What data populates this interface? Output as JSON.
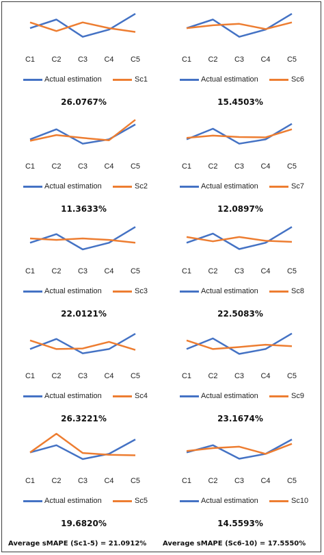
{
  "colors": {
    "actual": "#4472c4",
    "scenario": "#ed7d31",
    "text": "#222222"
  },
  "chart_data": [
    {
      "type": "line",
      "categories": [
        "C1",
        "C2",
        "C3",
        "C4",
        "C5"
      ],
      "series": [
        {
          "name": "Actual estimation",
          "values": [
            0.45,
            0.75,
            0.15,
            0.4,
            0.95
          ]
        },
        {
          "name": "Sc1",
          "values": [
            0.65,
            0.35,
            0.65,
            0.45,
            0.32
          ]
        }
      ],
      "ylim": [
        0,
        1
      ],
      "grid": false,
      "legend": "bottom",
      "score": "26.0767%"
    },
    {
      "type": "line",
      "categories": [
        "C1",
        "C2",
        "C3",
        "C4",
        "C5"
      ],
      "series": [
        {
          "name": "Actual estimation",
          "values": [
            0.45,
            0.75,
            0.15,
            0.4,
            0.95
          ]
        },
        {
          "name": "Sc6",
          "values": [
            0.45,
            0.55,
            0.6,
            0.42,
            0.65
          ]
        }
      ],
      "ylim": [
        0,
        1
      ],
      "grid": false,
      "legend": "bottom",
      "score": "15.4503%"
    },
    {
      "type": "line",
      "categories": [
        "C1",
        "C2",
        "C3",
        "C4",
        "C5"
      ],
      "series": [
        {
          "name": "Actual estimation",
          "values": [
            0.3,
            0.65,
            0.15,
            0.3,
            0.82
          ]
        },
        {
          "name": "Sc2",
          "values": [
            0.25,
            0.45,
            0.35,
            0.27,
            0.98
          ]
        }
      ],
      "ylim": [
        0,
        1
      ],
      "grid": false,
      "legend": "bottom",
      "score": "11.3633%"
    },
    {
      "type": "line",
      "categories": [
        "C1",
        "C2",
        "C3",
        "C4",
        "C5"
      ],
      "series": [
        {
          "name": "Actual estimation",
          "values": [
            0.3,
            0.67,
            0.15,
            0.3,
            0.84
          ]
        },
        {
          "name": "Sc7",
          "values": [
            0.35,
            0.43,
            0.38,
            0.37,
            0.65
          ]
        }
      ],
      "ylim": [
        0,
        1
      ],
      "grid": false,
      "legend": "bottom",
      "score": "12.0897%"
    },
    {
      "type": "line",
      "categories": [
        "C1",
        "C2",
        "C3",
        "C4",
        "C5"
      ],
      "series": [
        {
          "name": "Actual estimation",
          "values": [
            0.35,
            0.65,
            0.12,
            0.35,
            0.9
          ]
        },
        {
          "name": "Sc3",
          "values": [
            0.5,
            0.45,
            0.5,
            0.45,
            0.35
          ]
        }
      ],
      "ylim": [
        0,
        1
      ],
      "grid": false,
      "legend": "bottom",
      "score": "22.0121%"
    },
    {
      "type": "line",
      "categories": [
        "C1",
        "C2",
        "C3",
        "C4",
        "C5"
      ],
      "series": [
        {
          "name": "Actual estimation",
          "values": [
            0.35,
            0.67,
            0.13,
            0.35,
            0.9
          ]
        },
        {
          "name": "Sc8",
          "values": [
            0.55,
            0.4,
            0.55,
            0.42,
            0.38
          ]
        }
      ],
      "ylim": [
        0,
        1
      ],
      "grid": false,
      "legend": "bottom",
      "score": "22.5083%"
    },
    {
      "type": "line",
      "categories": [
        "C1",
        "C2",
        "C3",
        "C4",
        "C5"
      ],
      "series": [
        {
          "name": "Actual estimation",
          "values": [
            0.3,
            0.65,
            0.15,
            0.3,
            0.83
          ]
        },
        {
          "name": "Sc4",
          "values": [
            0.6,
            0.3,
            0.32,
            0.55,
            0.27
          ]
        }
      ],
      "ylim": [
        0,
        1
      ],
      "grid": false,
      "legend": "bottom",
      "score": "26.3221%"
    },
    {
      "type": "line",
      "categories": [
        "C1",
        "C2",
        "C3",
        "C4",
        "C5"
      ],
      "series": [
        {
          "name": "Actual estimation",
          "values": [
            0.3,
            0.67,
            0.13,
            0.3,
            0.84
          ]
        },
        {
          "name": "Sc9",
          "values": [
            0.6,
            0.3,
            0.37,
            0.45,
            0.4
          ]
        }
      ],
      "ylim": [
        0,
        1
      ],
      "grid": false,
      "legend": "bottom",
      "score": "23.1674%"
    },
    {
      "type": "line",
      "categories": [
        "C1",
        "C2",
        "C3",
        "C4",
        "C5"
      ],
      "series": [
        {
          "name": "Actual estimation",
          "values": [
            0.35,
            0.6,
            0.12,
            0.3,
            0.8
          ]
        },
        {
          "name": "Sc5",
          "values": [
            0.35,
            1.0,
            0.33,
            0.27,
            0.25
          ]
        }
      ],
      "ylim": [
        0,
        1
      ],
      "grid": false,
      "legend": "bottom",
      "score": "19.6820%"
    },
    {
      "type": "line",
      "categories": [
        "C1",
        "C2",
        "C3",
        "C4",
        "C5"
      ],
      "series": [
        {
          "name": "Actual estimation",
          "values": [
            0.35,
            0.6,
            0.13,
            0.3,
            0.8
          ]
        },
        {
          "name": "Sc10",
          "values": [
            0.4,
            0.5,
            0.55,
            0.3,
            0.65
          ]
        }
      ],
      "ylim": [
        0,
        1
      ],
      "grid": false,
      "legend": "bottom",
      "score": "14.5593%"
    }
  ],
  "summary": {
    "left": "Average sMAPE (Sc1-5) = 21.0912%",
    "right": "Average sMAPE (Sc6-10) = 17.5550%"
  }
}
